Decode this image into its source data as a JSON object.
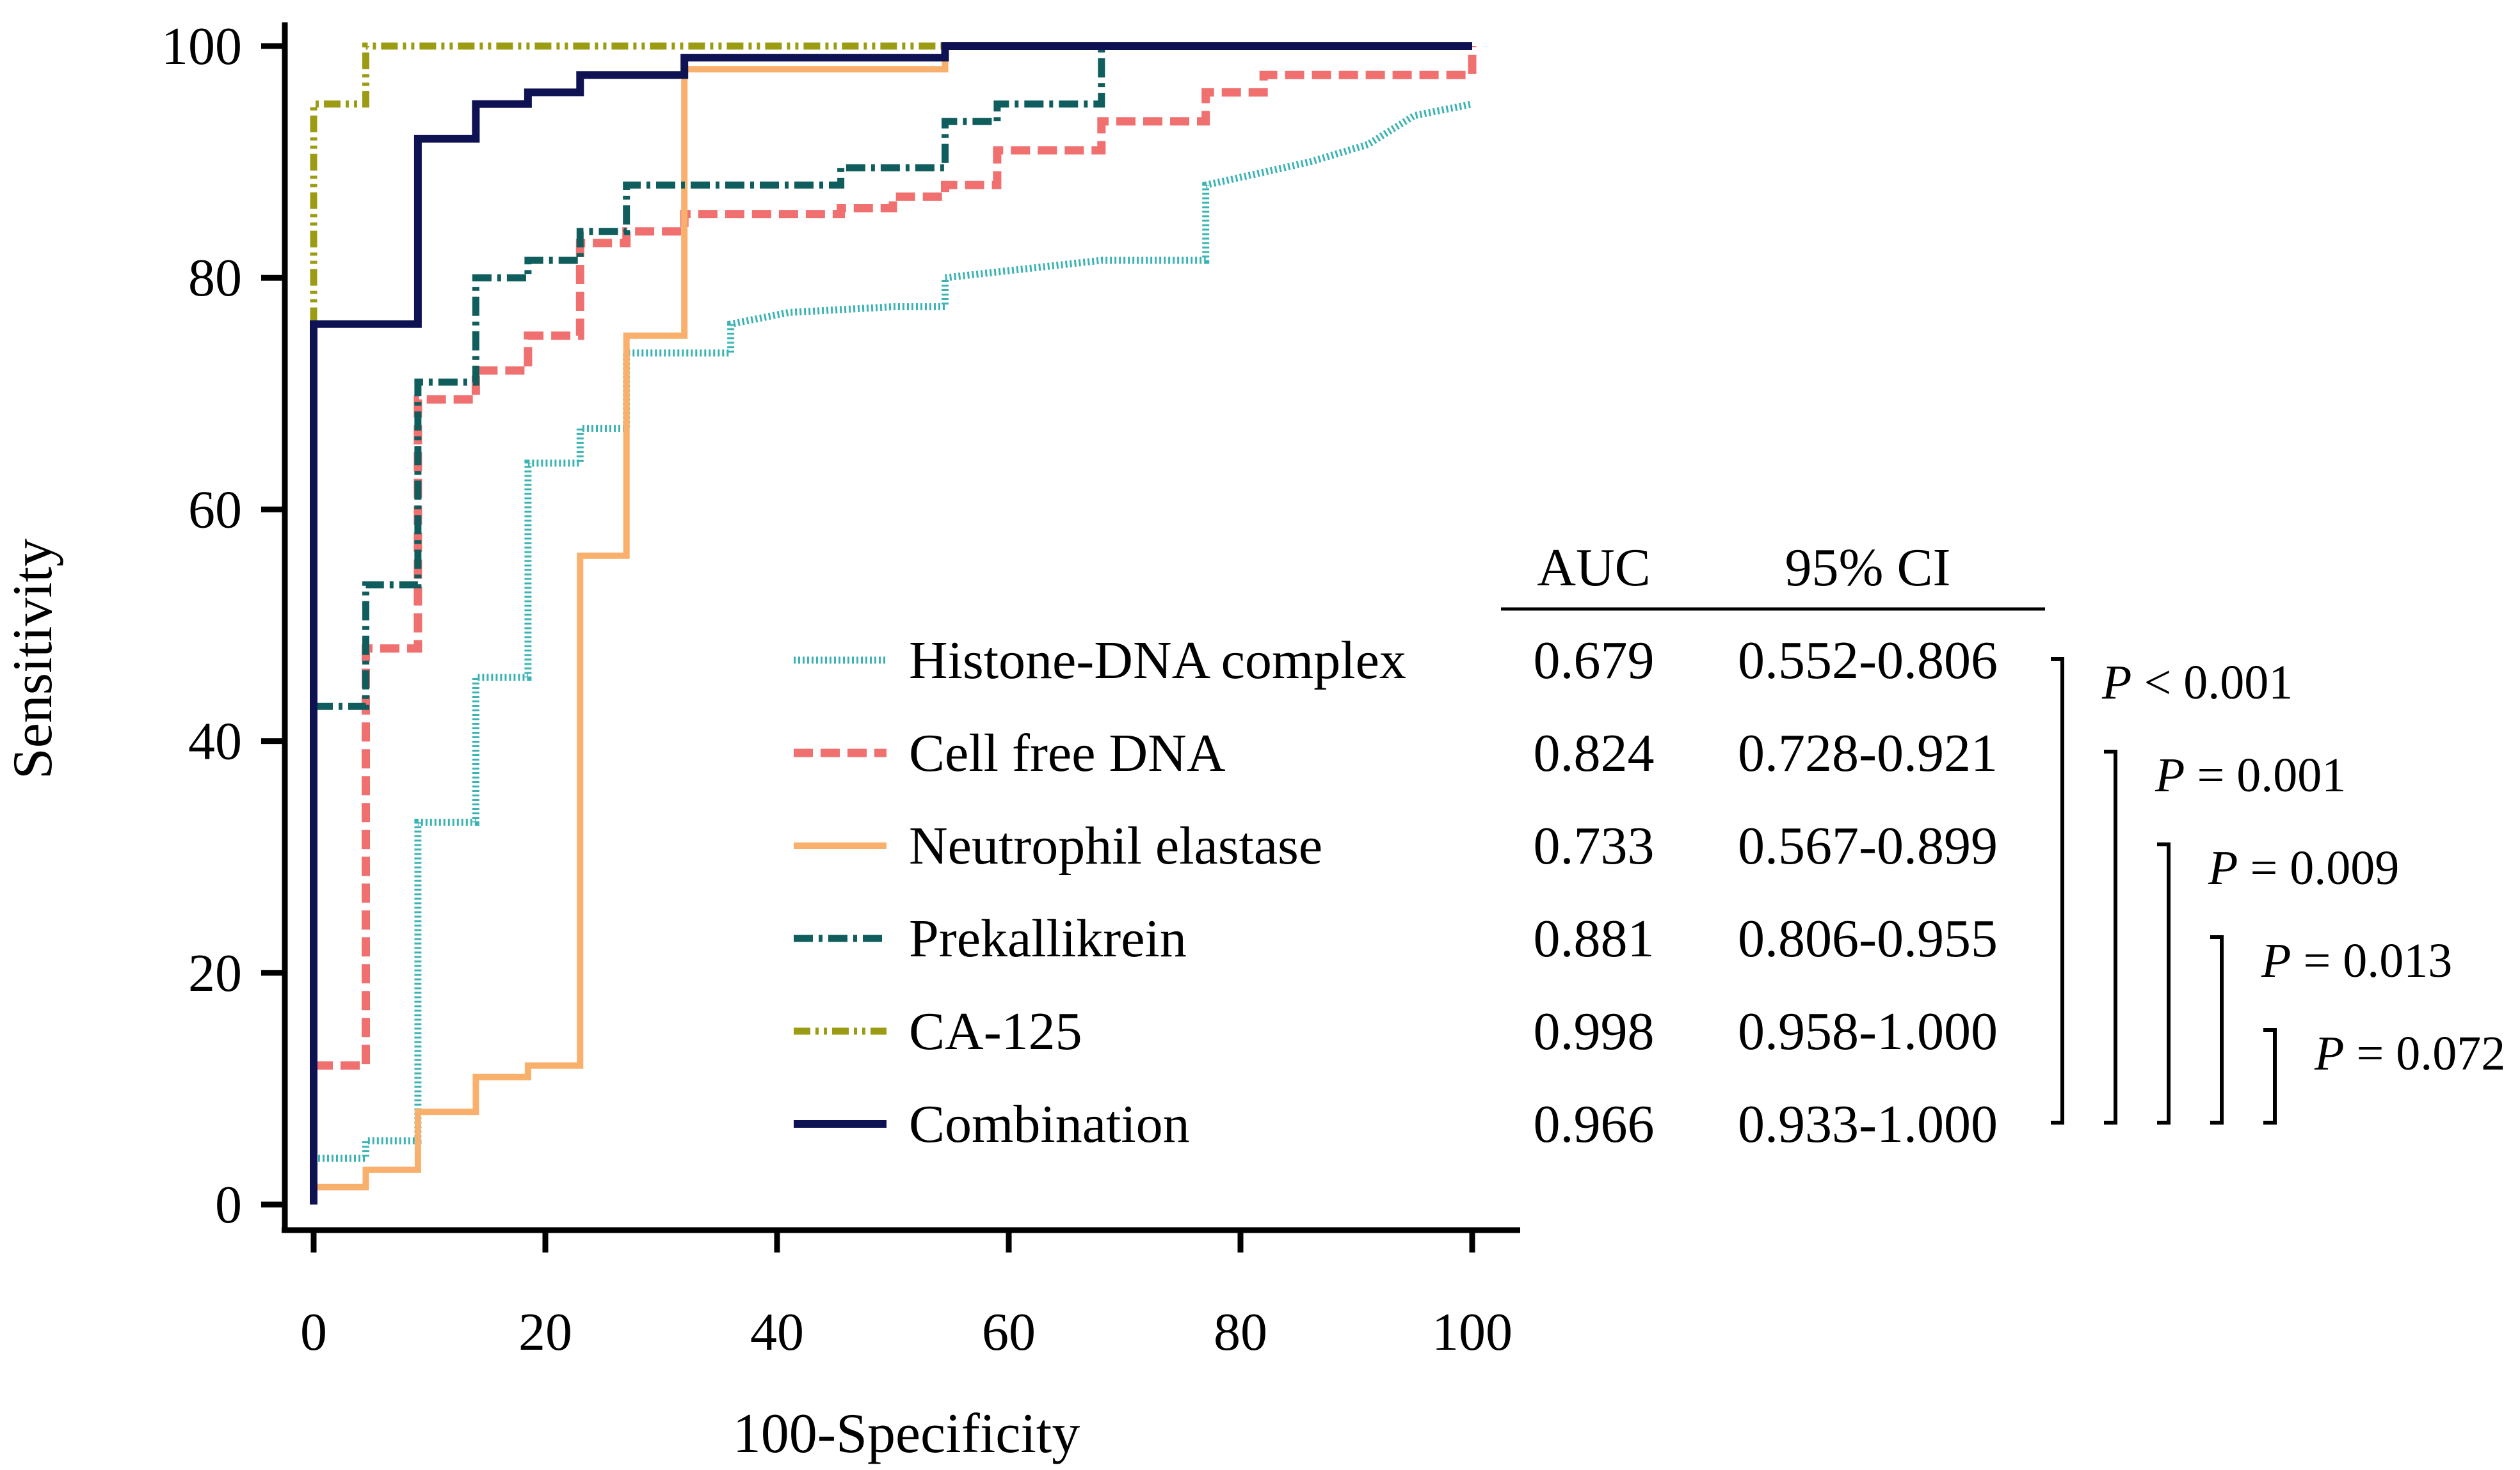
{
  "chart_data": {
    "type": "line",
    "title": "",
    "xlabel": "100-Specificity",
    "ylabel": "Sensitivity",
    "xlim": [
      0,
      100
    ],
    "ylim": [
      0,
      100
    ],
    "xticks": [
      0,
      20,
      40,
      60,
      80,
      100
    ],
    "yticks": [
      0,
      20,
      40,
      60,
      80,
      100
    ],
    "grid": false,
    "legend_position": "bottom-right",
    "table_headers": {
      "auc": "AUC",
      "ci": "95% CI"
    },
    "series": [
      {
        "name": "Histone-DNA complex",
        "auc": "0.679",
        "ci": "0.552-0.806",
        "color": "#3bb3b3",
        "style": "dotted",
        "points": [
          [
            0,
            4
          ],
          [
            4.5,
            4
          ],
          [
            4.5,
            5.5
          ],
          [
            9,
            5.5
          ],
          [
            9,
            33
          ],
          [
            14,
            33
          ],
          [
            14,
            45.5
          ],
          [
            18.5,
            45.5
          ],
          [
            18.5,
            64
          ],
          [
            23,
            64
          ],
          [
            23,
            67
          ],
          [
            27,
            67
          ],
          [
            27,
            73.5
          ],
          [
            36,
            73.5
          ],
          [
            36,
            76
          ],
          [
            41,
            77
          ],
          [
            50,
            77.5
          ],
          [
            54.5,
            77.5
          ],
          [
            54.5,
            80
          ],
          [
            59,
            80.5
          ],
          [
            68,
            81.5
          ],
          [
            77,
            81.5
          ],
          [
            77,
            88
          ],
          [
            86,
            90
          ],
          [
            91,
            91.5
          ],
          [
            95,
            94
          ],
          [
            100,
            95
          ]
        ]
      },
      {
        "name": "Cell free DNA",
        "auc": "0.824",
        "ci": "0.728-0.921",
        "color": "#f07070",
        "style": "dashed",
        "points": [
          [
            0,
            12
          ],
          [
            4.5,
            12
          ],
          [
            4.5,
            48
          ],
          [
            9,
            48
          ],
          [
            9,
            69.5
          ],
          [
            14,
            69.5
          ],
          [
            14,
            72
          ],
          [
            18.5,
            72
          ],
          [
            18.5,
            75
          ],
          [
            23,
            75
          ],
          [
            23,
            83
          ],
          [
            27,
            83
          ],
          [
            27,
            84
          ],
          [
            32,
            84
          ],
          [
            32,
            85.5
          ],
          [
            45.5,
            85.5
          ],
          [
            45.5,
            86
          ],
          [
            50,
            86
          ],
          [
            50,
            87
          ],
          [
            54.5,
            87
          ],
          [
            54.5,
            88
          ],
          [
            59,
            88
          ],
          [
            59,
            91
          ],
          [
            68,
            91
          ],
          [
            68,
            93.5
          ],
          [
            77,
            93.5
          ],
          [
            77,
            96
          ],
          [
            82,
            96
          ],
          [
            82,
            97.5
          ],
          [
            100,
            97.5
          ],
          [
            100,
            100
          ]
        ]
      },
      {
        "name": "Neutrophil elastase",
        "auc": "0.733",
        "ci": "0.567-0.899",
        "color": "#f9b06c",
        "style": "solid",
        "points": [
          [
            0,
            1.5
          ],
          [
            4.5,
            1.5
          ],
          [
            4.5,
            3
          ],
          [
            9,
            3
          ],
          [
            9,
            8
          ],
          [
            14,
            8
          ],
          [
            14,
            11
          ],
          [
            18.5,
            11
          ],
          [
            18.5,
            12
          ],
          [
            23,
            12
          ],
          [
            23,
            56
          ],
          [
            27,
            56
          ],
          [
            27,
            75
          ],
          [
            32,
            75
          ],
          [
            32,
            98
          ],
          [
            54.5,
            98
          ],
          [
            54.5,
            100
          ],
          [
            100,
            100
          ]
        ]
      },
      {
        "name": "Prekallikrein",
        "auc": "0.881",
        "ci": "0.806-0.955",
        "color": "#0f5d5d",
        "style": "dashdot",
        "points": [
          [
            0,
            43
          ],
          [
            4.5,
            43
          ],
          [
            4.5,
            53.5
          ],
          [
            9,
            53.5
          ],
          [
            9,
            71
          ],
          [
            14,
            71
          ],
          [
            14,
            80
          ],
          [
            18.5,
            80
          ],
          [
            18.5,
            81.5
          ],
          [
            23,
            81.5
          ],
          [
            23,
            84
          ],
          [
            27,
            84
          ],
          [
            27,
            88
          ],
          [
            45.5,
            88
          ],
          [
            45.5,
            89.5
          ],
          [
            54.5,
            89.5
          ],
          [
            54.5,
            93.5
          ],
          [
            59,
            93.5
          ],
          [
            59,
            95
          ],
          [
            68,
            95
          ],
          [
            68,
            100
          ],
          [
            100,
            100
          ]
        ]
      },
      {
        "name": "CA-125",
        "auc": "0.998",
        "ci": "0.958-1.000",
        "color": "#9c9c14",
        "style": "dashdotdot",
        "points": [
          [
            0,
            76
          ],
          [
            0,
            95
          ],
          [
            4.5,
            95
          ],
          [
            4.5,
            100
          ],
          [
            55,
            100
          ]
        ]
      },
      {
        "name": "Combination",
        "auc": "0.966",
        "ci": "0.933-1.000",
        "color": "#0e1253",
        "style": "solid-thick",
        "points": [
          [
            0,
            0
          ],
          [
            0,
            76
          ],
          [
            9,
            76
          ],
          [
            9,
            92
          ],
          [
            14,
            92
          ],
          [
            14,
            95
          ],
          [
            18.5,
            95
          ],
          [
            18.5,
            96
          ],
          [
            23,
            96
          ],
          [
            23,
            97.5
          ],
          [
            32,
            97.5
          ],
          [
            32,
            99
          ],
          [
            54.5,
            99
          ],
          [
            54.5,
            100
          ],
          [
            100,
            100
          ]
        ]
      }
    ],
    "comparisons": [
      {
        "text_italic": "P",
        "text_rest": " < 0.001"
      },
      {
        "text_italic": "P",
        "text_rest": " = 0.001"
      },
      {
        "text_italic": "P",
        "text_rest": " = 0.009"
      },
      {
        "text_italic": "P",
        "text_rest": " = 0.013"
      },
      {
        "text_italic": "P",
        "text_rest": " = 0.072"
      }
    ]
  }
}
